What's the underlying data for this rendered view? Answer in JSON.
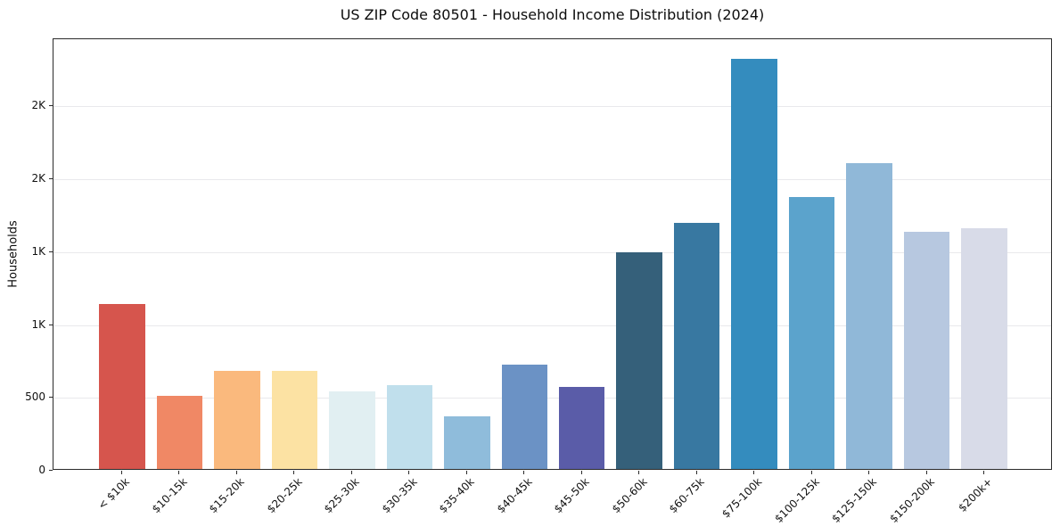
{
  "chart_data": {
    "type": "bar",
    "title": "US ZIP Code 80501 - Household Income Distribution (2024)",
    "xlabel": "",
    "ylabel": "Households",
    "categories": [
      "< $10k",
      "$10-15k",
      "$15-20k",
      "$20-25k",
      "$25-30k",
      "$30-35k",
      "$35-40k",
      "$40-45k",
      "$45-50k",
      "$50-60k",
      "$60-75k",
      "$75-100k",
      "$100-125k",
      "$125-150k",
      "$150-200k",
      "$200k+"
    ],
    "values": [
      1130,
      500,
      675,
      670,
      530,
      575,
      360,
      715,
      565,
      1485,
      1690,
      2815,
      1865,
      2100,
      1630,
      1650
    ],
    "bar_colors": [
      "#d6554d",
      "#f08865",
      "#fab97d",
      "#fce2a3",
      "#e1eff2",
      "#c0dfec",
      "#8fbcdb",
      "#6b92c5",
      "#5a5ca8",
      "#35607a",
      "#3878a1",
      "#348cbe",
      "#5ba3cc",
      "#90b8d8",
      "#b7c8e0",
      "#d8dbe8"
    ],
    "ylim": [
      0,
      2960
    ],
    "xlim": [
      -1.19,
      16.19
    ],
    "bar_width_units": 0.8,
    "yticks": [
      {
        "value": 0,
        "label": "0"
      },
      {
        "value": 500,
        "label": "500"
      },
      {
        "value": 1000,
        "label": "1K"
      },
      {
        "value": 1500,
        "label": "1K"
      },
      {
        "value": 2000,
        "label": "2K"
      },
      {
        "value": 2500,
        "label": "2K"
      }
    ],
    "grid": "horizontal",
    "grid_color": "#e9e9ec",
    "spine_color": "#2b2b2b",
    "text_color": "#111111",
    "background_color": "#ffffff",
    "legend": "none"
  }
}
